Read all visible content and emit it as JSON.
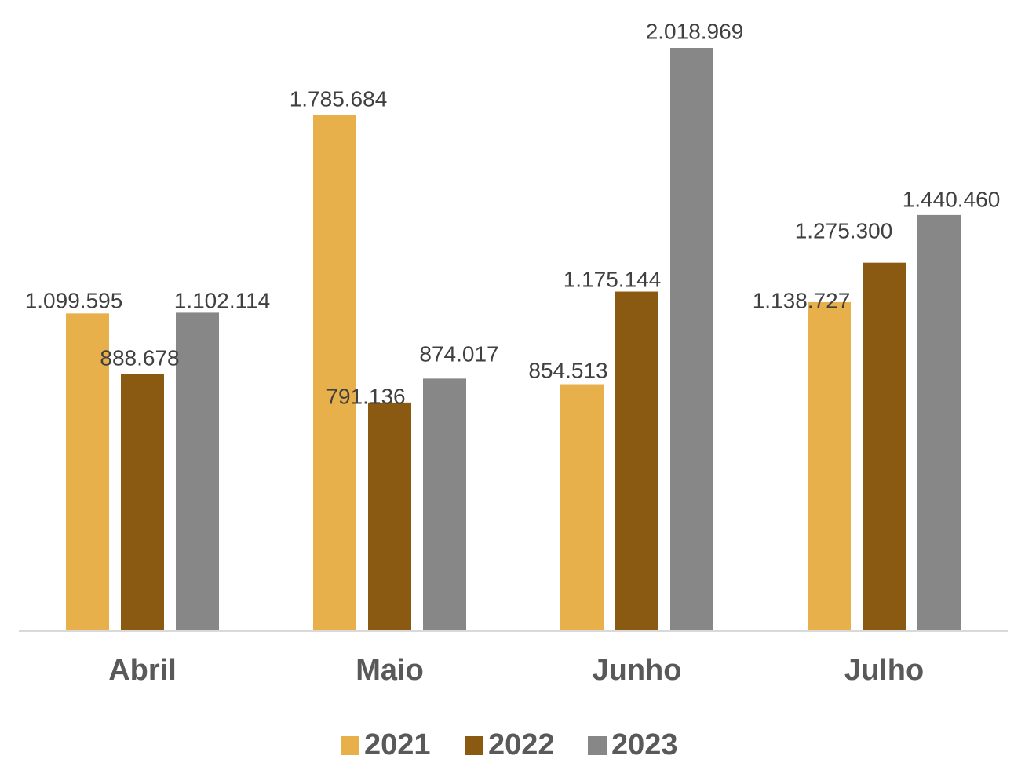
{
  "chart_data": {
    "type": "bar",
    "categories": [
      "Abril",
      "Maio",
      "Junho",
      "Julho"
    ],
    "series": [
      {
        "name": "2021",
        "color": "#E8B04A",
        "values": [
          1099595,
          1785684,
          854513,
          1138727
        ],
        "labels": [
          "1.099.595",
          "1.785.684",
          "854.513",
          "1.138.727"
        ]
      },
      {
        "name": "2022",
        "color": "#8A5A13",
        "values": [
          888678,
          791136,
          1175144,
          1275300
        ],
        "labels": [
          "888.678",
          "791.136",
          "1.175.144",
          "1.275.300"
        ]
      },
      {
        "name": "2023",
        "color": "#878787",
        "values": [
          1102114,
          874017,
          2018969,
          1440460
        ],
        "labels": [
          "1.102.114",
          "874.017",
          "2.018.969",
          "1.440.460"
        ]
      }
    ],
    "ylim": [
      0,
      2018969
    ],
    "grid": false,
    "legend_position": "bottom"
  }
}
